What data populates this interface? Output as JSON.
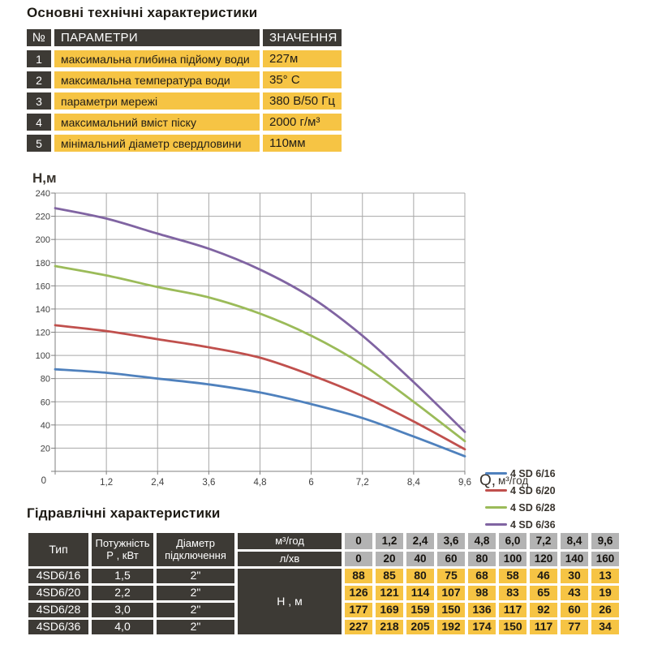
{
  "colors": {
    "dark_cell": "#3D3A35",
    "yellow_cell": "#F6C444",
    "gray_cell": "#B3B3B3",
    "grid_line": "#A8A8A8",
    "axis_line": "#7F7F7F",
    "axis_text": "#3F3F3F",
    "title_text": "#1D1A14"
  },
  "spec_section": {
    "title": "Основні технічні характеристики",
    "header": {
      "num": "№",
      "param": "ПАРАМЕТРИ",
      "value": "ЗНАЧЕННЯ"
    },
    "rows": [
      {
        "num": "1",
        "param": "максимальна глибина підйому води",
        "value": "227м"
      },
      {
        "num": "2",
        "param": "максимальна температура води",
        "value": "35° С"
      },
      {
        "num": "3",
        "param": "параметри мережі",
        "value": "380 В/50 Гц"
      },
      {
        "num": "4",
        "param": "максимальний вміст піску",
        "value": "2000 г/м³"
      },
      {
        "num": "5",
        "param": "мінімальний діаметр свердловини",
        "value": "110мм"
      }
    ]
  },
  "chart_data": {
    "type": "line",
    "title": "",
    "ylabel": "Н,м",
    "xlabel": "Q, м³/год",
    "xlabel_main": "Q,",
    "xlabel_unit": "м³/год",
    "x": [
      0,
      1.2,
      2.4,
      3.6,
      4.8,
      6,
      7.2,
      8.4,
      9.6
    ],
    "x_tick_labels": [
      "0",
      "1,2",
      "2,4",
      "3,6",
      "4,8",
      "6",
      "7,2",
      "8,4",
      "9,6"
    ],
    "xlim": [
      0,
      9.6
    ],
    "ylim": [
      0,
      240
    ],
    "y_tick_step": 20,
    "grid": true,
    "legend_position": "right",
    "series": [
      {
        "name": "4 SD 6/16",
        "color": "#4F81BD",
        "values": [
          88,
          85,
          80,
          75,
          68,
          58,
          46,
          30,
          13
        ]
      },
      {
        "name": "4 SD 6/20",
        "color": "#C0504D",
        "values": [
          126,
          121,
          114,
          107,
          98,
          83,
          65,
          43,
          19
        ]
      },
      {
        "name": "4 SD 6/28",
        "color": "#9BBB59",
        "values": [
          177,
          169,
          159,
          150,
          136,
          117,
          92,
          60,
          26
        ]
      },
      {
        "name": "4 SD 6/36",
        "color": "#8064A2",
        "values": [
          227,
          218,
          205,
          192,
          174,
          150,
          117,
          77,
          34
        ]
      }
    ]
  },
  "hydraulic_section": {
    "title": "Гідравлічні характеристики",
    "col_headers": {
      "type": "Тип",
      "power_line1": "Потужність",
      "power_line2": "Р , кВт",
      "diameter_line1": "Діаметр",
      "diameter_line2": "підключення",
      "flow_m3": "м³/год",
      "flow_l": "л/хв",
      "head": "Н , м"
    },
    "flow_m3_values": [
      "0",
      "1,2",
      "2,4",
      "3,6",
      "4,8",
      "6,0",
      "7,2",
      "8,4",
      "9,6"
    ],
    "flow_l_values": [
      "0",
      "20",
      "40",
      "60",
      "80",
      "100",
      "120",
      "140",
      "160"
    ],
    "rows": [
      {
        "type": "4SD6/16",
        "power": "1,5",
        "diameter": "2\"",
        "head_values": [
          "88",
          "85",
          "80",
          "75",
          "68",
          "58",
          "46",
          "30",
          "13"
        ]
      },
      {
        "type": "4SD6/20",
        "power": "2,2",
        "diameter": "2\"",
        "head_values": [
          "126",
          "121",
          "114",
          "107",
          "98",
          "83",
          "65",
          "43",
          "19"
        ]
      },
      {
        "type": "4SD6/28",
        "power": "3,0",
        "diameter": "2\"",
        "head_values": [
          "177",
          "169",
          "159",
          "150",
          "136",
          "117",
          "92",
          "60",
          "26"
        ]
      },
      {
        "type": "4SD6/36",
        "power": "4,0",
        "diameter": "2\"",
        "head_values": [
          "227",
          "218",
          "205",
          "192",
          "174",
          "150",
          "117",
          "77",
          "34"
        ]
      }
    ]
  }
}
